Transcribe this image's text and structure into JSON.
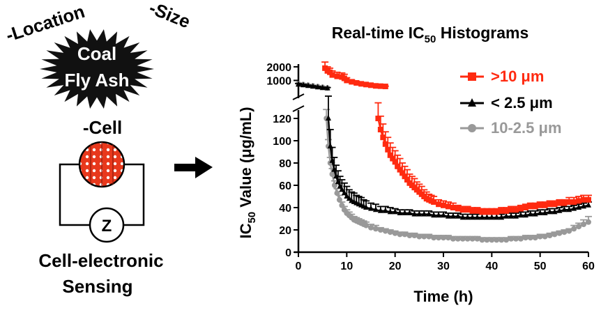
{
  "left_panel": {
    "star_title": [
      "Coal",
      "Fly Ash"
    ],
    "label_location": "-Location",
    "label_size": "-Size",
    "label_cell": "-Cell",
    "impedance_symbol": "Z",
    "caption": [
      "Cell-electronic",
      "Sensing"
    ]
  },
  "colors": {
    "red": "#ff2a10",
    "black": "#000000",
    "gray": "#999999"
  },
  "chart_data": {
    "type": "line",
    "title_main": "Real-time IC",
    "title_sub": "50",
    "title_tail": " Histograms",
    "xlabel": "Time (h)",
    "ylabel_main": "IC",
    "ylabel_sub": "50",
    "ylabel_tail": " Value (μg/mL)",
    "xlim": [
      0,
      60
    ],
    "xticks": [
      0,
      10,
      20,
      30,
      40,
      50,
      60
    ],
    "ylim_lower": [
      0,
      125
    ],
    "yticks_lower": [
      0,
      20,
      40,
      60,
      80,
      100,
      120
    ],
    "ylim_upper": [
      0,
      2200
    ],
    "yticks_upper": [
      1000,
      2000
    ],
    "legend_position": "top-right",
    "series": [
      {
        "name": ">10 μm",
        "color": "#ff2a10",
        "marker": "square",
        "upper": {
          "x": [
            5.5,
            6.0,
            6.5,
            7.0,
            8.0,
            9.0,
            9.5,
            10.0,
            11.0,
            12.0,
            13.0,
            14.0,
            15.0,
            16.0,
            17.0,
            18.0
          ],
          "y": [
            1900,
            1700,
            1600,
            1400,
            1300,
            1250,
            1150,
            1000,
            900,
            820,
            750,
            700,
            650,
            600,
            580,
            560
          ],
          "err": [
            450,
            300,
            300,
            300,
            300,
            300,
            300,
            200,
            150,
            120,
            100,
            80,
            60,
            40,
            30,
            20
          ]
        },
        "lower": {
          "x": [
            16.5,
            17,
            17.5,
            18,
            18.5,
            19,
            19.5,
            20,
            20.5,
            21,
            21.5,
            22,
            22.5,
            23,
            23.5,
            24,
            24.5,
            25,
            25.5,
            26,
            26.5,
            27,
            27.5,
            28,
            29,
            30,
            31,
            32,
            33,
            34,
            35,
            36,
            37,
            38,
            39,
            40,
            41,
            42,
            43,
            44,
            45,
            46,
            47,
            48,
            49,
            50,
            51,
            52,
            53,
            54,
            55,
            56,
            57,
            58,
            59,
            60
          ],
          "y": [
            120,
            110,
            103,
            97,
            92,
            87,
            84,
            81,
            77,
            74,
            71,
            68,
            65,
            62,
            60,
            58,
            56,
            54,
            52,
            50,
            48,
            47,
            46,
            45,
            43,
            42,
            41,
            40,
            39,
            38,
            38,
            37,
            37,
            36,
            36,
            36,
            36,
            37,
            37,
            38,
            38,
            39,
            40,
            41,
            41,
            42,
            42,
            43,
            43,
            44,
            44,
            45,
            45,
            46,
            47,
            47
          ],
          "err": [
            14,
            12,
            12,
            11,
            11,
            11,
            10,
            10,
            10,
            10,
            9,
            9,
            9,
            8,
            8,
            8,
            7,
            7,
            7,
            6,
            6,
            5,
            5,
            5,
            4,
            4,
            4,
            4,
            3,
            3,
            3,
            3,
            3,
            3,
            3,
            3,
            3,
            3,
            3,
            3,
            3,
            3,
            3,
            3,
            3,
            3,
            3,
            3,
            3,
            3,
            3,
            4,
            4,
            4,
            4,
            4
          ]
        }
      },
      {
        "name": "< 2.5 μm",
        "color": "#000000",
        "marker": "triangle",
        "upper": {
          "x": [
            0,
            1,
            2,
            3,
            4,
            5,
            6
          ],
          "y": [
            700,
            650,
            600,
            550,
            500,
            450,
            420
          ],
          "err": [
            80,
            70,
            60,
            60,
            60,
            60,
            60
          ]
        },
        "lower": {
          "x": [
            6.2,
            6.6,
            7,
            7.4,
            7.8,
            8.2,
            8.6,
            9,
            9.5,
            10,
            10.5,
            11,
            11.5,
            12,
            12.5,
            13,
            13.5,
            14,
            15,
            16,
            17,
            18,
            19,
            20,
            21,
            22,
            23,
            24,
            25,
            26,
            27,
            28,
            29,
            30,
            31,
            32,
            33,
            34,
            35,
            36,
            37,
            38,
            39,
            40,
            41,
            42,
            43,
            44,
            45,
            46,
            47,
            48,
            49,
            50,
            51,
            52,
            53,
            54,
            55,
            56,
            57,
            58,
            59,
            60
          ],
          "y": [
            120,
            95,
            82,
            74,
            68,
            63,
            59,
            56,
            53,
            50,
            48,
            46,
            45,
            44,
            43,
            42,
            41,
            40,
            39,
            38,
            37,
            37,
            36,
            36,
            35,
            35,
            35,
            34,
            34,
            34,
            34,
            33,
            33,
            33,
            32,
            32,
            32,
            31,
            31,
            31,
            31,
            31,
            31,
            31,
            31,
            31,
            32,
            32,
            32,
            33,
            33,
            34,
            34,
            35,
            35,
            36,
            36,
            37,
            38,
            38,
            39,
            40,
            41,
            42
          ],
          "err": [
            20,
            15,
            12,
            11,
            10,
            10,
            9,
            9,
            9,
            9,
            8,
            8,
            8,
            7,
            7,
            7,
            6,
            6,
            5,
            5,
            4,
            4,
            4,
            3,
            3,
            3,
            3,
            3,
            3,
            3,
            3,
            3,
            3,
            3,
            3,
            3,
            3,
            3,
            3,
            3,
            3,
            3,
            3,
            3,
            3,
            3,
            3,
            3,
            3,
            3,
            3,
            3,
            3,
            3,
            3,
            3,
            3,
            3,
            3,
            3,
            3,
            3,
            3,
            3
          ]
        }
      },
      {
        "name": "10-2.5 μm",
        "color": "#999999",
        "marker": "circle",
        "upper": {
          "x": [
            0,
            1,
            2,
            3,
            4,
            5,
            6
          ],
          "y": [
            750,
            700,
            650,
            600,
            550,
            500,
            450
          ],
          "err": [
            0,
            0,
            0,
            0,
            0,
            0,
            0
          ]
        },
        "lower": {
          "x": [
            5.8,
            6.2,
            6.6,
            7,
            7.5,
            8,
            8.5,
            9,
            9.5,
            10,
            10.5,
            11,
            11.5,
            12,
            12.5,
            13,
            13.5,
            14,
            15,
            16,
            17,
            18,
            19,
            20,
            21,
            22,
            23,
            24,
            25,
            26,
            27,
            28,
            29,
            30,
            31,
            32,
            33,
            34,
            35,
            36,
            37,
            38,
            39,
            40,
            41,
            42,
            43,
            44,
            45,
            46,
            47,
            48,
            49,
            50,
            51,
            52,
            53,
            54,
            55,
            56,
            57,
            58,
            59,
            60
          ],
          "y": [
            120,
            95,
            80,
            70,
            60,
            53,
            47,
            42,
            38,
            35,
            33,
            31,
            29,
            28,
            27,
            26,
            25,
            24,
            22,
            21,
            20,
            19,
            18,
            17,
            16,
            16,
            15,
            15,
            14,
            14,
            14,
            13,
            13,
            13,
            13,
            12,
            12,
            12,
            12,
            12,
            12,
            11,
            11,
            11,
            11,
            11,
            11,
            12,
            12,
            12,
            13,
            13,
            13,
            14,
            14,
            15,
            16,
            17,
            18,
            19,
            21,
            23,
            25,
            27
          ],
          "err": [
            8,
            6,
            5,
            5,
            4,
            4,
            4,
            3,
            3,
            3,
            3,
            3,
            3,
            3,
            3,
            3,
            3,
            3,
            3,
            3,
            2,
            2,
            2,
            2,
            2,
            2,
            2,
            2,
            2,
            2,
            2,
            2,
            2,
            2,
            2,
            2,
            2,
            2,
            2,
            2,
            2,
            2,
            2,
            2,
            2,
            2,
            2,
            2,
            2,
            2,
            2,
            2,
            2,
            2,
            2,
            2,
            2,
            2,
            2,
            2,
            3,
            3,
            4,
            5
          ]
        }
      }
    ]
  }
}
